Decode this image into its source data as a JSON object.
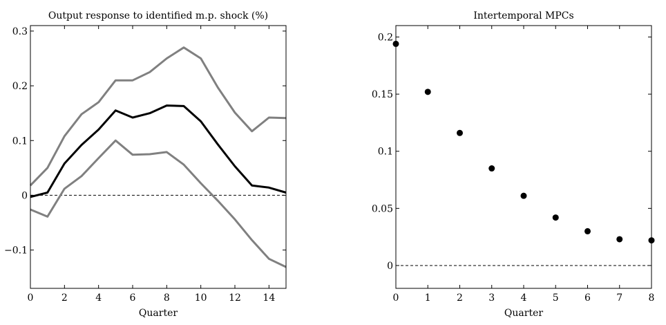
{
  "chart_data": [
    {
      "type": "line",
      "title": "Output response to identified m.p. shock (%)",
      "xlabel": "Quarter",
      "ylabel": "",
      "xlim": [
        0,
        15
      ],
      "ylim": [
        -0.17,
        0.31
      ],
      "xticks": [
        0,
        2,
        4,
        6,
        8,
        10,
        12,
        14
      ],
      "yticks": [
        -0.1,
        0,
        0.1,
        0.2,
        0.3
      ],
      "ytick_labels": [
        "−0.1",
        "0",
        "0.1",
        "0.2",
        "0.3"
      ],
      "grid": false,
      "reference_line": {
        "y": 0,
        "style": "dashed",
        "color": "#000000"
      },
      "x": [
        0,
        1,
        2,
        3,
        4,
        5,
        6,
        7,
        8,
        9,
        10,
        11,
        12,
        13,
        14,
        15
      ],
      "series": [
        {
          "role": "upper-band",
          "color": "#808080",
          "values": [
            0.018,
            0.05,
            0.108,
            0.148,
            0.17,
            0.21,
            0.21,
            0.225,
            0.25,
            0.27,
            0.25,
            0.197,
            0.151,
            0.117,
            0.142,
            0.141
          ]
        },
        {
          "role": "point-estimate",
          "color": "#000000",
          "values": [
            -0.003,
            0.005,
            0.058,
            0.092,
            0.12,
            0.155,
            0.142,
            0.15,
            0.164,
            0.163,
            0.135,
            0.093,
            0.053,
            0.018,
            0.014,
            0.005
          ]
        },
        {
          "role": "lower-band",
          "color": "#808080",
          "values": [
            -0.026,
            -0.039,
            0.012,
            0.035,
            0.068,
            0.1,
            0.074,
            0.075,
            0.079,
            0.056,
            0.022,
            -0.01,
            -0.044,
            -0.082,
            -0.116,
            -0.131
          ]
        }
      ]
    },
    {
      "type": "scatter",
      "title": "Intertemporal MPCs",
      "xlabel": "Quarter",
      "ylabel": "",
      "xlim": [
        0,
        8
      ],
      "ylim": [
        -0.02,
        0.21
      ],
      "xticks": [
        0,
        1,
        2,
        3,
        4,
        5,
        6,
        7,
        8
      ],
      "yticks": [
        0,
        0.05,
        0.1,
        0.15,
        0.2
      ],
      "ytick_labels": [
        "0",
        "0.05",
        "0.1",
        "0.15",
        "0.2"
      ],
      "grid": false,
      "reference_line": {
        "y": 0,
        "style": "dashed",
        "color": "#000000"
      },
      "x": [
        0,
        1,
        2,
        3,
        4,
        5,
        6,
        7,
        8
      ],
      "series": [
        {
          "color": "#000000",
          "values": [
            0.194,
            0.152,
            0.116,
            0.085,
            0.061,
            0.042,
            0.03,
            0.023,
            0.022
          ]
        }
      ]
    }
  ]
}
